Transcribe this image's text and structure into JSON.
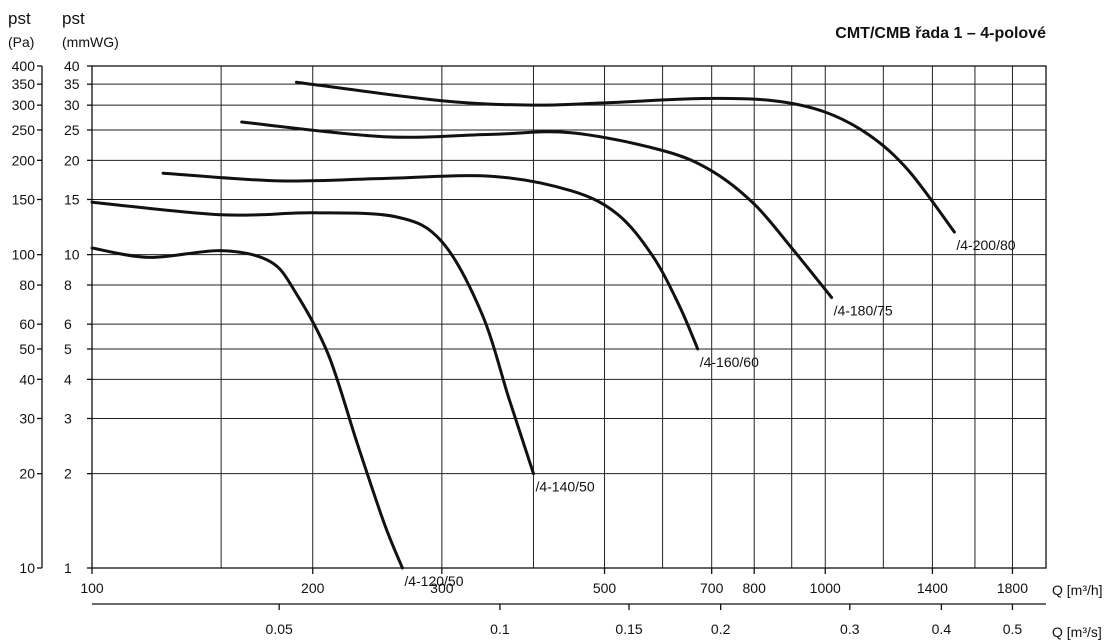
{
  "chart_data": {
    "type": "line",
    "title": "CMT/CMB řada 1 – 4-polové",
    "left_axis_label_1": "pst",
    "left_axis_unit_1": "(Pa)",
    "left_axis_label_2": "pst",
    "left_axis_unit_2": "(mmWG)",
    "x_label": "Q [m³/h]",
    "x2_label": "Q [m³/s]",
    "x_scale": "log",
    "y_scale": "log",
    "xlim": [
      100,
      2000
    ],
    "ylim_mmwg": [
      1,
      40
    ],
    "x_ticks": [
      100,
      200,
      300,
      500,
      700,
      800,
      1000,
      1400,
      1800
    ],
    "x_tick_labels": [
      "100",
      "200",
      "300",
      "500",
      "700",
      "800",
      "1000",
      "1400",
      "1800"
    ],
    "x2_ticks_m3h": [
      180,
      360,
      540,
      720,
      1080,
      1440,
      1800
    ],
    "x2_tick_labels": [
      "0.05",
      "0.1",
      "0.15",
      "0.2",
      "0.3",
      "0.4",
      "0.5"
    ],
    "y_mmwg_ticks": [
      1,
      2,
      3,
      4,
      5,
      6,
      8,
      10,
      15,
      20,
      25,
      30,
      35,
      40
    ],
    "y_mmwg_tick_labels": [
      "1",
      "2",
      "3",
      "4",
      "5",
      "6",
      "8",
      "10",
      "15",
      "20",
      "25",
      "30",
      "35",
      "40"
    ],
    "y_pa_ticks": [
      10,
      20,
      30,
      40,
      50,
      60,
      80,
      100,
      150,
      200,
      250,
      300,
      350,
      400
    ],
    "y_pa_tick_labels": [
      "10",
      "20",
      "30",
      "40",
      "50",
      "60",
      "80",
      "100",
      "150",
      "200",
      "250",
      "300",
      "350",
      "400"
    ],
    "grid": true,
    "series": [
      {
        "name": "/4-120/50",
        "x": [
          100,
          120,
          150,
          175,
          190,
          210,
          230,
          250,
          265
        ],
        "y": [
          10.5,
          9.8,
          10.3,
          9.5,
          7.5,
          4.8,
          2.5,
          1.4,
          1
        ]
      },
      {
        "name": "/4-140/50",
        "x": [
          100,
          150,
          200,
          260,
          300,
          340,
          370,
          390,
          400
        ],
        "y": [
          14.7,
          13.4,
          13.6,
          13.2,
          11.0,
          6.5,
          3.5,
          2.4,
          2
        ]
      },
      {
        "name": "/4-160/60",
        "x": [
          125,
          180,
          250,
          350,
          450,
          520,
          580,
          630,
          670
        ],
        "y": [
          18.2,
          17.2,
          17.5,
          17.8,
          16.0,
          13.5,
          10.0,
          7.0,
          5
        ]
      },
      {
        "name": "/4-180/75",
        "x": [
          160,
          250,
          350,
          450,
          600,
          700,
          800,
          900,
          1020
        ],
        "y": [
          26.5,
          23.8,
          24.2,
          24.5,
          21.5,
          18.5,
          14.5,
          10.5,
          7.3
        ]
      },
      {
        "name": "/4-200/80",
        "x": [
          190,
          300,
          400,
          500,
          680,
          850,
          1000,
          1150,
          1300,
          1500
        ],
        "y": [
          35.5,
          31.0,
          30.0,
          30.5,
          31.5,
          31.0,
          28.5,
          24.0,
          18.5,
          11.8
        ]
      }
    ]
  }
}
